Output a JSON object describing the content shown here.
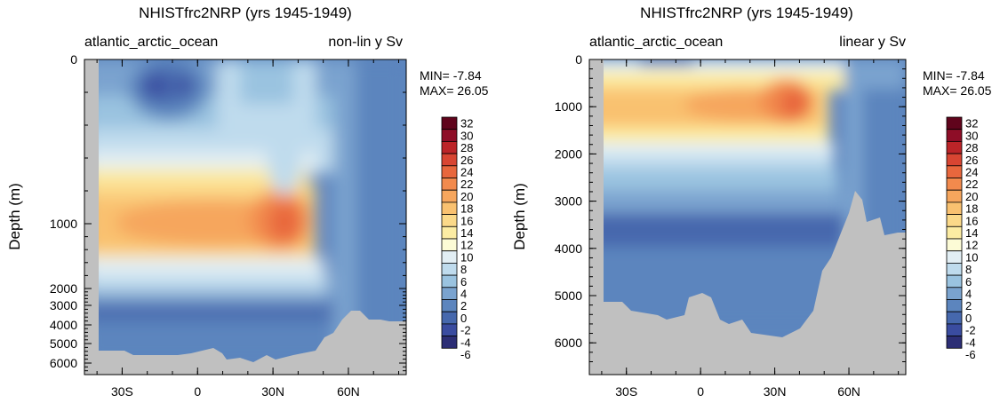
{
  "colors": {
    "land": "#c0c0c0",
    "scale": [
      "#2c2e75",
      "#3a4ca0",
      "#4668ad",
      "#5c85be",
      "#7aa3cf",
      "#9ac3e0",
      "#bfdbed",
      "#e2eef4",
      "#fcfbd6",
      "#fceca3",
      "#fbd989",
      "#f9c170",
      "#f6a65d",
      "#f28a4d",
      "#e8673d",
      "#d84532",
      "#bc2428",
      "#8e0d27",
      "#60041c"
    ]
  },
  "chart_data": [
    {
      "type": "contour",
      "title": "NHISTfrc2NRP (yrs 1945-1949)",
      "left_subtitle": "atlantic_arctic_ocean",
      "right_subtitle": "non-lin y Sv",
      "ylabel": "Depth (m)",
      "y_scale": "non-linear",
      "y_ticks": [
        0,
        1000,
        2000,
        3000,
        4000,
        5000,
        6000
      ],
      "x_ticks": [
        "30S",
        "0",
        "30N",
        "60N"
      ],
      "xlim": [
        -45,
        83
      ],
      "min_label": "MIN= -7.84",
      "max_label": "MAX= 26.05",
      "colorbar_levels": [
        "32",
        "30",
        "28",
        "26",
        "24",
        "22",
        "20",
        "18",
        "16",
        "14",
        "12",
        "10",
        "8",
        "6",
        "4",
        "2",
        "0",
        "-2",
        "-4",
        "-6"
      ],
      "max_location": {
        "lat": 38,
        "depth": 1000,
        "value": 26.05
      }
    },
    {
      "type": "contour",
      "title": "NHISTfrc2NRP (yrs 1945-1949)",
      "left_subtitle": "atlantic_arctic_ocean",
      "right_subtitle": "linear y Sv",
      "ylabel": "Depth (m)",
      "y_scale": "linear",
      "y_ticks": [
        0,
        1000,
        2000,
        3000,
        4000,
        5000,
        6000
      ],
      "x_ticks": [
        "30S",
        "0",
        "30N",
        "60N"
      ],
      "xlim": [
        -45,
        83
      ],
      "min_label": "MIN= -7.84",
      "max_label": "MAX= 26.05",
      "colorbar_levels": [
        "32",
        "30",
        "28",
        "26",
        "24",
        "22",
        "20",
        "18",
        "16",
        "14",
        "12",
        "10",
        "8",
        "6",
        "4",
        "2",
        "0",
        "-2",
        "-4",
        "-6"
      ],
      "max_location": {
        "lat": 40,
        "depth": 900,
        "value": 26.05
      }
    }
  ]
}
